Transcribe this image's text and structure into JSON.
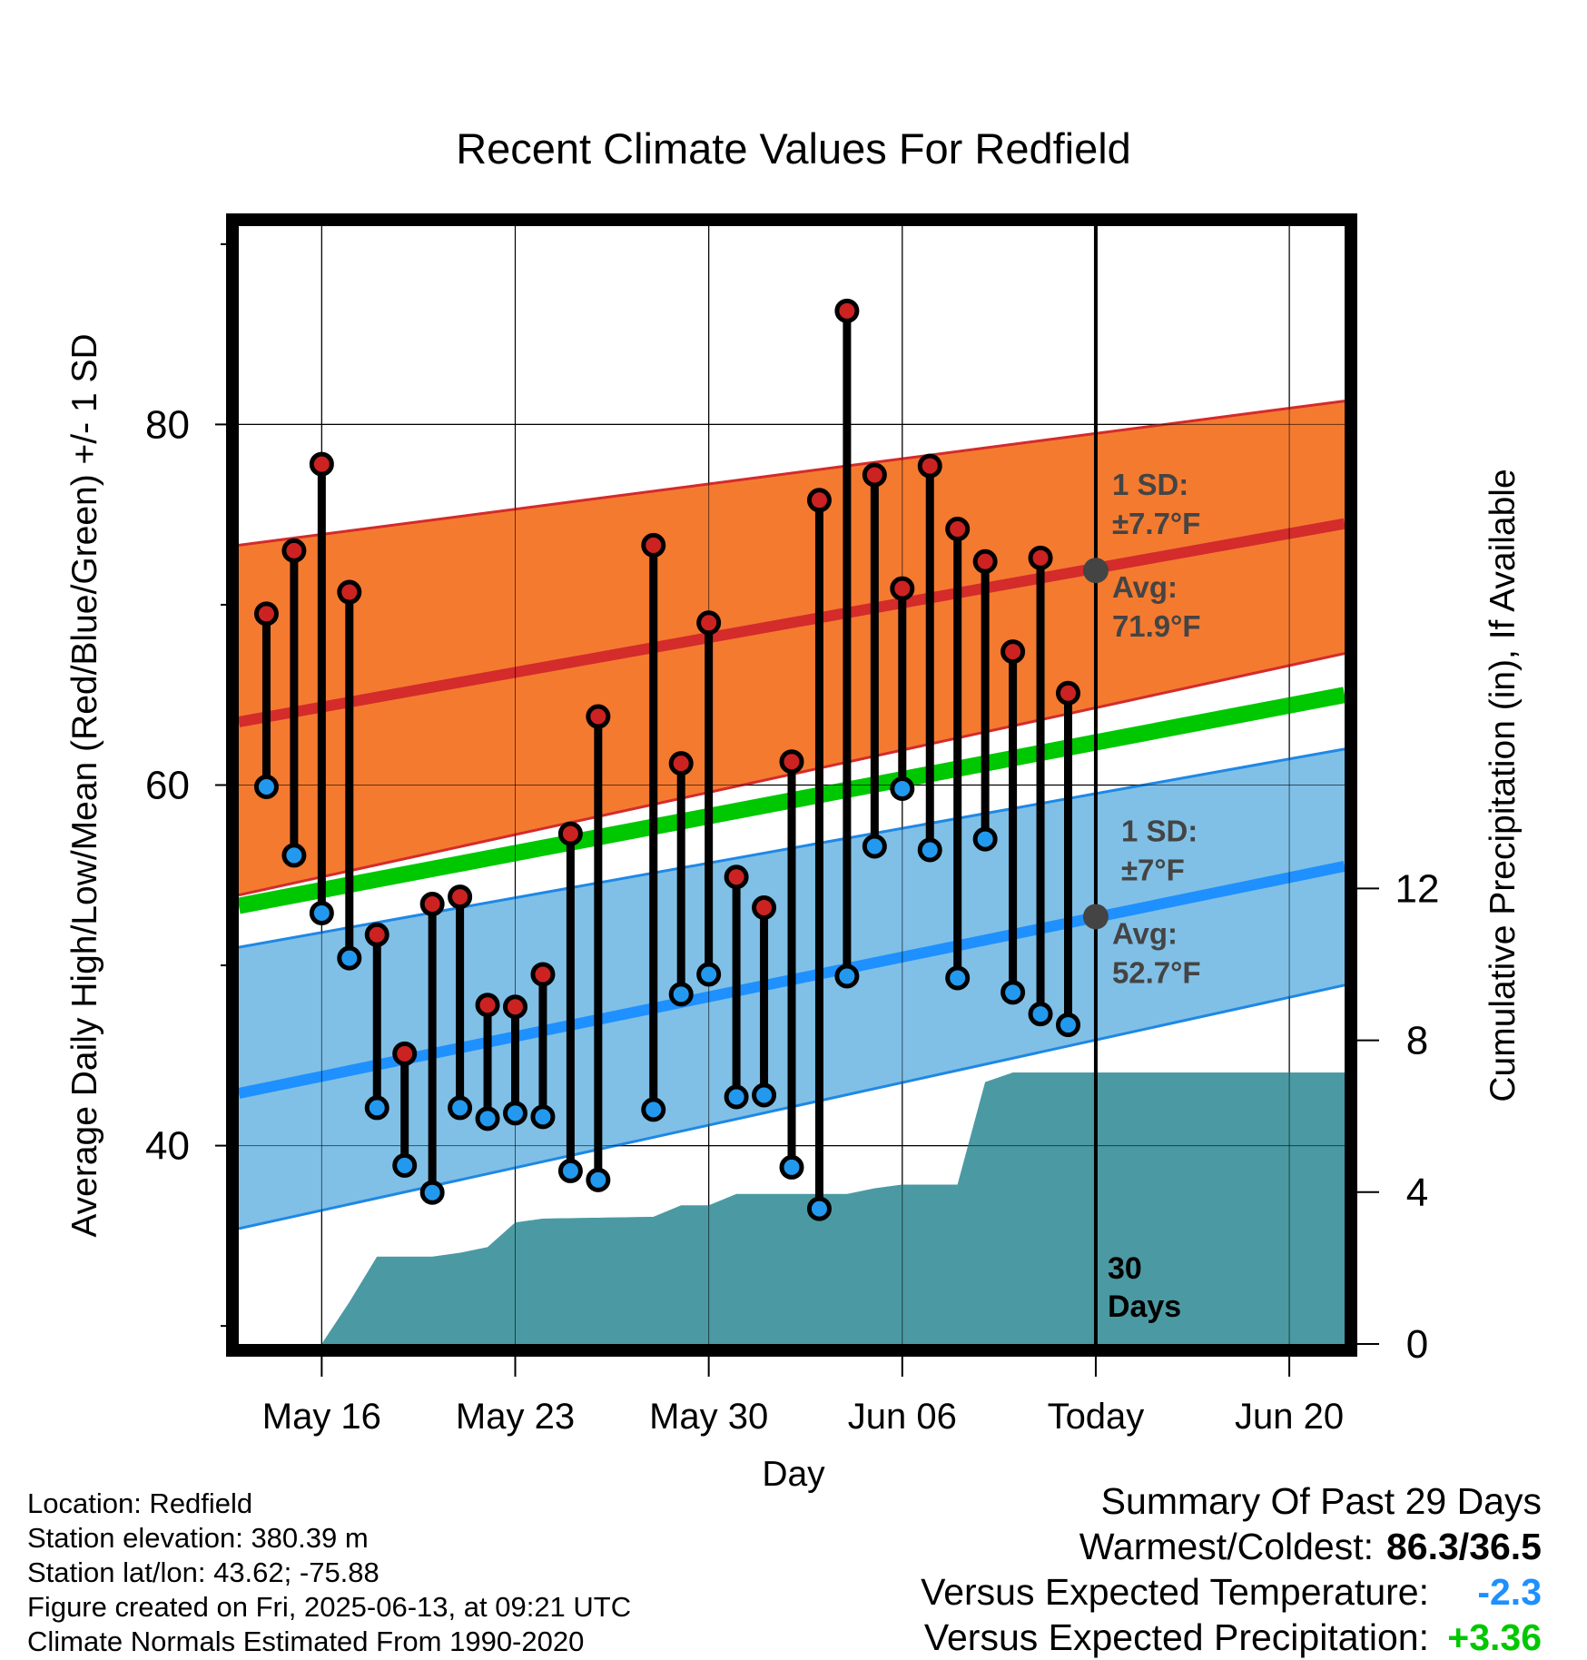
{
  "chart_data": {
    "type": "line",
    "title": "Recent Climate Values For Redfield",
    "xlabel": "Day",
    "ylabel": "Average Daily High/Low/Mean (Red/Blue/Green) +/- 1 SD",
    "y2label": "Cumulative Precipitation (in), If Available",
    "x_ticks": [
      "May 16",
      "May 23",
      "May 30",
      "Jun 06",
      "Today",
      "Jun 20"
    ],
    "x_range": [
      "2025-05-13",
      "2025-06-22"
    ],
    "today": "2025-06-13",
    "y_ticks": [
      40,
      60,
      80
    ],
    "ylim": [
      29,
      91
    ],
    "y2_ticks": [
      0,
      4,
      8,
      12
    ],
    "y2lim": [
      0,
      29.45
    ],
    "grid": true,
    "colors": {
      "high_band": "#f47a30",
      "high_avg": "#d42b2b",
      "low_band": "#80c0e6",
      "low_avg": "#1e90ff",
      "mean": "#00c800",
      "precip": "#4b9aa3",
      "high_marker": "#cc2222",
      "low_marker": "#2299ee",
      "today_marker": "#444444",
      "annotation_text": "#444444"
    },
    "normal_high": {
      "start": 63.5,
      "end": 74.5,
      "sd_low_start": 53.9,
      "sd_low_end": 67.3,
      "sd_high_start": 73.3,
      "sd_high_end": 81.3
    },
    "normal_low": {
      "start": 42.9,
      "end": 55.5,
      "sd_low_start": 35.4,
      "sd_low_end": 48.9,
      "sd_high_start": 51.0,
      "sd_high_end": 62.0
    },
    "normal_mean": {
      "start": 53.3,
      "end": 65.0
    },
    "daily": [
      {
        "date": "2025-05-14",
        "high": 69.5,
        "low": 59.9
      },
      {
        "date": "2025-05-15",
        "high": 73.0,
        "low": 56.1
      },
      {
        "date": "2025-05-16",
        "high": 77.8,
        "low": 52.9
      },
      {
        "date": "2025-05-17",
        "high": 70.7,
        "low": 50.4
      },
      {
        "date": "2025-05-18",
        "high": 51.7,
        "low": 42.1
      },
      {
        "date": "2025-05-19",
        "high": 45.1,
        "low": 38.9
      },
      {
        "date": "2025-05-20",
        "high": 53.4,
        "low": 37.4
      },
      {
        "date": "2025-05-21",
        "high": 53.8,
        "low": 42.1
      },
      {
        "date": "2025-05-22",
        "high": 47.8,
        "low": 41.5
      },
      {
        "date": "2025-05-23",
        "high": 47.7,
        "low": 41.8
      },
      {
        "date": "2025-05-24",
        "high": 49.5,
        "low": 41.6
      },
      {
        "date": "2025-05-25",
        "high": 57.3,
        "low": 38.6
      },
      {
        "date": "2025-05-26",
        "high": 63.8,
        "low": 38.1
      },
      {
        "date": "2025-05-28",
        "high": 73.3,
        "low": 42.0
      },
      {
        "date": "2025-05-29",
        "high": 61.2,
        "low": 48.4
      },
      {
        "date": "2025-05-30",
        "high": 69.0,
        "low": 49.5
      },
      {
        "date": "2025-05-31",
        "high": 54.9,
        "low": 42.7
      },
      {
        "date": "2025-06-01",
        "high": 53.2,
        "low": 42.8
      },
      {
        "date": "2025-06-02",
        "high": 61.3,
        "low": 38.8
      },
      {
        "date": "2025-06-03",
        "high": 75.8,
        "low": 36.5
      },
      {
        "date": "2025-06-04",
        "high": 86.3,
        "low": 49.4
      },
      {
        "date": "2025-06-05",
        "high": 77.2,
        "low": 56.6
      },
      {
        "date": "2025-06-06",
        "high": 70.9,
        "low": 59.8
      },
      {
        "date": "2025-06-07",
        "high": 77.7,
        "low": 56.4
      },
      {
        "date": "2025-06-08",
        "high": 74.2,
        "low": 49.3
      },
      {
        "date": "2025-06-09",
        "high": 72.4,
        "low": 57.0
      },
      {
        "date": "2025-06-10",
        "high": 67.4,
        "low": 48.5
      },
      {
        "date": "2025-06-11",
        "high": 72.6,
        "low": 47.3
      },
      {
        "date": "2025-06-12",
        "high": 65.1,
        "low": 46.7
      }
    ],
    "precip_cumulative": [
      {
        "date": "2025-05-16",
        "value": 0.0
      },
      {
        "date": "2025-05-17",
        "value": 1.1
      },
      {
        "date": "2025-05-18",
        "value": 2.3
      },
      {
        "date": "2025-05-20",
        "value": 2.3
      },
      {
        "date": "2025-05-21",
        "value": 2.4
      },
      {
        "date": "2025-05-22",
        "value": 2.55
      },
      {
        "date": "2025-05-23",
        "value": 3.2
      },
      {
        "date": "2025-05-24",
        "value": 3.3
      },
      {
        "date": "2025-05-28",
        "value": 3.35
      },
      {
        "date": "2025-05-29",
        "value": 3.65
      },
      {
        "date": "2025-05-30",
        "value": 3.65
      },
      {
        "date": "2025-05-31",
        "value": 3.95
      },
      {
        "date": "2025-06-04",
        "value": 3.95
      },
      {
        "date": "2025-06-05",
        "value": 4.1
      },
      {
        "date": "2025-06-06",
        "value": 4.2
      },
      {
        "date": "2025-06-08",
        "value": 4.2
      },
      {
        "date": "2025-06-09",
        "value": 6.9
      },
      {
        "date": "2025-06-10",
        "value": 7.15
      },
      {
        "date": "2025-06-13",
        "value": 7.15
      },
      {
        "date": "2025-06-22",
        "value": 7.15
      }
    ],
    "annotations": {
      "high_sd_label": "1 SD:",
      "high_sd_value": "±7.7°F",
      "high_avg_label": "Avg:",
      "high_avg_value": "71.9°F",
      "high_avg": 71.9,
      "low_sd_label": "1 SD:",
      "low_sd_value": "±7°F",
      "low_avg_label": "Avg:",
      "low_avg_value": "52.7°F",
      "low_avg": 52.7,
      "days_number": "30",
      "days_word": "Days"
    }
  },
  "footer": {
    "location": "Location: Redfield",
    "elevation": "Station elevation: 380.39 m",
    "latlon": "Station lat/lon: 43.62; -75.88",
    "created": "Figure created on Fri, 2025-06-13, at 09:21 UTC",
    "normals": "Climate Normals Estimated From 1990-2020"
  },
  "summary": {
    "title": "Summary Of Past 29 Days",
    "warmest_coldest_label": "Warmest/Coldest:",
    "warmest_coldest_value": "86.3/36.5",
    "temp_label": "Versus Expected Temperature:",
    "temp_value": "-2.3",
    "temp_color": "#1e90ff",
    "precip_label": "Versus Expected Precipitation:",
    "precip_value": "+3.36",
    "precip_color": "#00c800"
  }
}
